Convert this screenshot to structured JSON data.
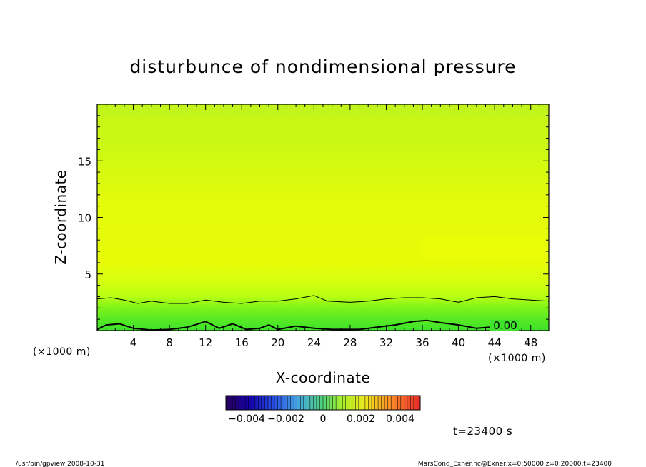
{
  "chart_data": {
    "type": "heatmap",
    "title": "disturbunce of nondimensional pressure",
    "xlabel": "X-coordinate",
    "ylabel": "Z-coordinate",
    "x_unit": "(×1000 m)",
    "x_unit_left": "(×1000 m)",
    "xlim": [
      0,
      50
    ],
    "ylim": [
      0,
      20
    ],
    "x_ticks": [
      4,
      8,
      12,
      16,
      20,
      24,
      28,
      32,
      36,
      40,
      44,
      48
    ],
    "y_ticks": [
      5,
      10,
      15
    ],
    "contour_label": "0.00",
    "contour_upper_z": [
      [
        0,
        2.8
      ],
      [
        1.5,
        2.9
      ],
      [
        3,
        2.7
      ],
      [
        4.5,
        2.4
      ],
      [
        6,
        2.6
      ],
      [
        8,
        2.4
      ],
      [
        10,
        2.4
      ],
      [
        12,
        2.7
      ],
      [
        14,
        2.5
      ],
      [
        16,
        2.4
      ],
      [
        18,
        2.6
      ],
      [
        20,
        2.6
      ],
      [
        22,
        2.8
      ],
      [
        24,
        3.1
      ],
      [
        25.5,
        2.6
      ],
      [
        28,
        2.5
      ],
      [
        30,
        2.6
      ],
      [
        32,
        2.8
      ],
      [
        34,
        2.9
      ],
      [
        36,
        2.9
      ],
      [
        38,
        2.8
      ],
      [
        40,
        2.5
      ],
      [
        42,
        2.9
      ],
      [
        44,
        3.0
      ],
      [
        46,
        2.8
      ],
      [
        48,
        2.7
      ],
      [
        50,
        2.6
      ]
    ],
    "contour_lower_z": [
      [
        0,
        0.1
      ],
      [
        1,
        0.5
      ],
      [
        2.5,
        0.6
      ],
      [
        4,
        0.2
      ],
      [
        6,
        0.05
      ],
      [
        8,
        0.1
      ],
      [
        10,
        0.3
      ],
      [
        12,
        0.8
      ],
      [
        13.5,
        0.2
      ],
      [
        15,
        0.6
      ],
      [
        16.5,
        0.1
      ],
      [
        18,
        0.2
      ],
      [
        19,
        0.5
      ],
      [
        20,
        0.1
      ],
      [
        22,
        0.4
      ],
      [
        24,
        0.2
      ],
      [
        26,
        0.1
      ],
      [
        29,
        0.1
      ],
      [
        31,
        0.3
      ],
      [
        33,
        0.5
      ],
      [
        35,
        0.8
      ],
      [
        36.5,
        0.9
      ],
      [
        38,
        0.7
      ],
      [
        40,
        0.5
      ],
      [
        42,
        0.2
      ],
      [
        43.5,
        0.3
      ]
    ],
    "colorbar": {
      "range": [
        -0.005,
        0.005
      ],
      "tick_labels": [
        "−0.004",
        "−0.002",
        "0",
        "0.002",
        "0.004"
      ],
      "tick_values": [
        -0.004,
        -0.002,
        0,
        0.002,
        0.004
      ]
    },
    "time_label": "t=23400 s"
  },
  "footer": {
    "left": "/usr/bin/gpview  2008-10-31",
    "right": "MarsCond_Exner.nc@Exner,x=0:50000,z=0:20000,t=23400"
  }
}
